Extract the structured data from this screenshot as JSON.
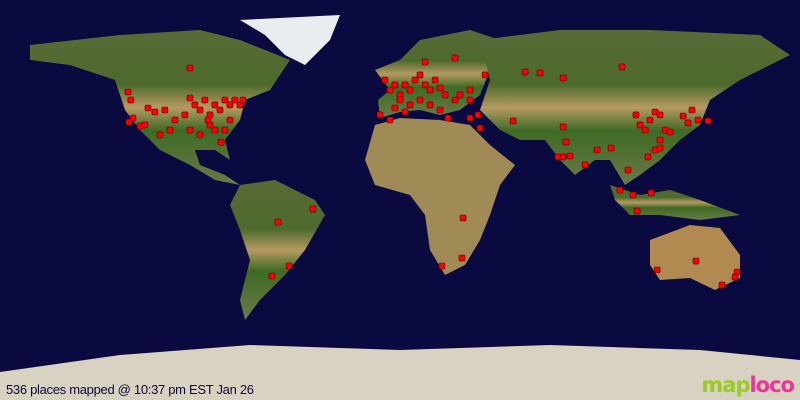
{
  "map": {
    "projection": "equirectangular",
    "ocean_color": "#0a0a40",
    "marker_color": "#ff0000",
    "places": [
      [
        -122.4,
        48.6
      ],
      [
        -121.1,
        45
      ],
      [
        -120.2,
        36.9
      ],
      [
        -122,
        35.1
      ],
      [
        -117,
        33.3
      ],
      [
        -113.4,
        41.4
      ],
      [
        -110.3,
        39.6
      ],
      [
        -105.8,
        40.5
      ],
      [
        -103.5,
        31.5
      ],
      [
        -96.8,
        38.3
      ],
      [
        -94.5,
        45.9
      ],
      [
        -92.3,
        42.8
      ],
      [
        -90,
        40.5
      ],
      [
        -87.8,
        45
      ],
      [
        -85.5,
        38.3
      ],
      [
        -83.3,
        42.8
      ],
      [
        -81,
        40.5
      ],
      [
        -78.8,
        45
      ],
      [
        -76.5,
        42.8
      ],
      [
        -74.3,
        45
      ],
      [
        -72,
        42.8
      ],
      [
        -85.5,
        33.8
      ],
      [
        -83.3,
        31.5
      ],
      [
        -90,
        29.3
      ],
      [
        -94.5,
        31.5
      ],
      [
        -76.5,
        36
      ],
      [
        -78.8,
        31.5
      ],
      [
        -80.5,
        26
      ],
      [
        -94.5,
        59.4
      ],
      [
        -108,
        29.3
      ],
      [
        -114.8,
        33.8
      ],
      [
        -101.3,
        36
      ],
      [
        -86.4,
        36
      ],
      [
        -70.7,
        45
      ],
      [
        -6.8,
        54
      ],
      [
        -4.5,
        49.5
      ],
      [
        -2.3,
        51.8
      ],
      [
        0,
        47.3
      ],
      [
        2.3,
        51.8
      ],
      [
        4.5,
        49.5
      ],
      [
        6.8,
        54
      ],
      [
        9,
        56.3
      ],
      [
        11.3,
        51.8
      ],
      [
        13.5,
        49.5
      ],
      [
        15.8,
        54
      ],
      [
        18,
        50.4
      ],
      [
        20.3,
        47.3
      ],
      [
        9,
        45
      ],
      [
        4.5,
        42.8
      ],
      [
        0,
        45
      ],
      [
        -2.3,
        41.4
      ],
      [
        -9,
        38.3
      ],
      [
        -4.5,
        36
      ],
      [
        2.3,
        39.6
      ],
      [
        13.5,
        42.8
      ],
      [
        18,
        40.5
      ],
      [
        24.8,
        45
      ],
      [
        27,
        47.3
      ],
      [
        31.5,
        49.5
      ],
      [
        11.3,
        62.1
      ],
      [
        24.8,
        63.9
      ],
      [
        38.3,
        56.3
      ],
      [
        56.3,
        57.6
      ],
      [
        63,
        57.2
      ],
      [
        73.4,
        54.9
      ],
      [
        99.9,
        59.9
      ],
      [
        35.1,
        38.3
      ],
      [
        36,
        32.4
      ],
      [
        31.5,
        36.9
      ],
      [
        21.6,
        36.9
      ],
      [
        31.5,
        45
      ],
      [
        50.9,
        35.6
      ],
      [
        73.4,
        32.9
      ],
      [
        74.7,
        26.1
      ],
      [
        71.1,
        19.4
      ],
      [
        73.4,
        19.4
      ],
      [
        76.5,
        19.8
      ],
      [
        83.3,
        15.8
      ],
      [
        88.7,
        22.5
      ],
      [
        95,
        23.4
      ],
      [
        102.6,
        13.5
      ],
      [
        106.2,
        38.3
      ],
      [
        108,
        33.8
      ],
      [
        110.3,
        31.5
      ],
      [
        112.5,
        36
      ],
      [
        114.8,
        39.6
      ],
      [
        117,
        38.3
      ],
      [
        119.3,
        31.5
      ],
      [
        121.5,
        30.6
      ],
      [
        117,
        27
      ],
      [
        114.8,
        22.5
      ],
      [
        111.6,
        19.4
      ],
      [
        117,
        23.4
      ],
      [
        127.4,
        37.8
      ],
      [
        129.6,
        34.7
      ],
      [
        138.6,
        35.6
      ],
      [
        134.1,
        36
      ],
      [
        131.4,
        40.5
      ],
      [
        99,
        4.5
      ],
      [
        104.9,
        2.3
      ],
      [
        113,
        3.2
      ],
      [
        106.7,
        -5
      ],
      [
        28.4,
        -8.1
      ],
      [
        27.9,
        -26.1
      ],
      [
        18.9,
        -29.7
      ],
      [
        -54.9,
        -9.9
      ],
      [
        -39.2,
        -4.1
      ],
      [
        -49.9,
        -29.7
      ],
      [
        -57.6,
        -34.2
      ],
      [
        115.7,
        -31.5
      ],
      [
        133.2,
        -27.5
      ],
      [
        151.7,
        -32.4
      ],
      [
        150.8,
        -34.7
      ],
      [
        144.9,
        -38.3
      ]
    ]
  },
  "caption": "536 places mapped @ 10:37 pm EST Jan 26",
  "logo": {
    "part1": "map",
    "part2": "loco",
    "color1": "#99cc22",
    "color2": "#ee3399"
  }
}
